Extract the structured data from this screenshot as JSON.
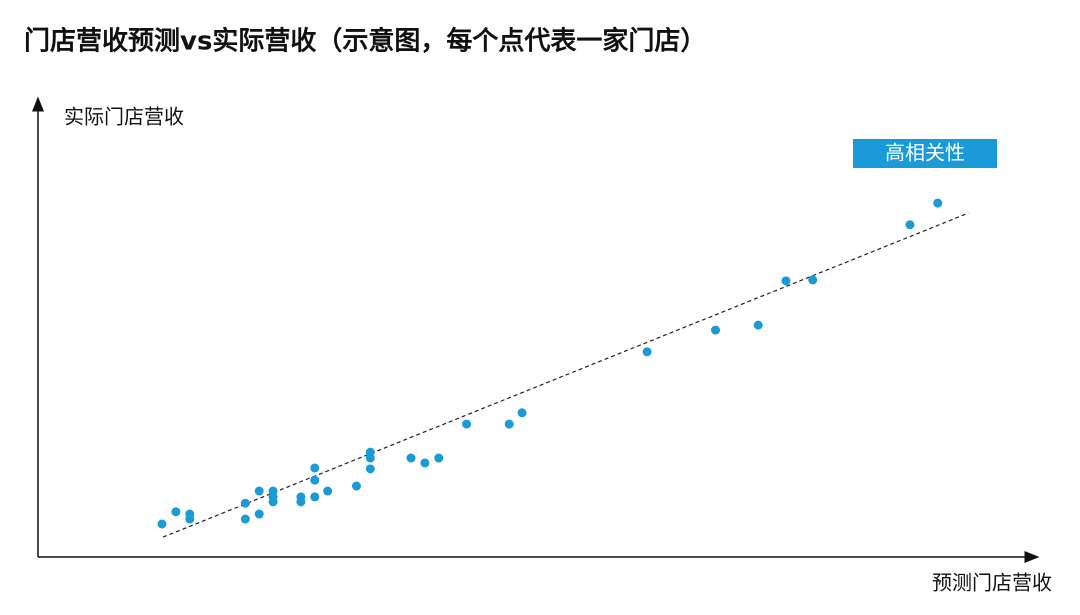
{
  "chart_data": {
    "type": "scatter",
    "title": "门店营收预测vs实际营收（示意图，每个点代表一家门店）",
    "x_label": "预测门店营收",
    "y_label": "实际门店营收",
    "annotation": "高相关性",
    "xlim": [
      0,
      100
    ],
    "ylim": [
      0,
      100
    ],
    "color": "#1a9bd7",
    "series": [
      {
        "x": [
          12.5,
          13.9,
          15.3,
          15.3,
          20.9,
          20.9,
          22.3,
          22.3,
          23.7,
          23.7,
          23.7,
          26.5,
          26.5,
          27.9,
          27.9,
          27.9,
          29.2,
          32.1,
          33.5,
          33.5,
          33.5,
          37.6,
          39.0,
          40.4,
          43.2,
          47.5,
          48.8,
          61.4,
          68.3,
          72.6,
          75.4,
          78.1,
          87.9,
          90.7
        ],
        "values": [
          7.3,
          10.0,
          9.5,
          8.4,
          11.9,
          8.4,
          14.6,
          9.5,
          14.6,
          13.3,
          12.2,
          13.3,
          12.2,
          19.7,
          17.0,
          13.3,
          14.6,
          15.7,
          23.2,
          21.9,
          19.5,
          21.9,
          20.8,
          21.9,
          29.4,
          29.4,
          31.9,
          45.4,
          50.2,
          51.3,
          61.1,
          61.3,
          73.5,
          78.3
        ]
      }
    ],
    "trendline": {
      "x": [
        12.6,
        93.8
      ],
      "values": [
        4.4,
        76.1
      ]
    }
  }
}
